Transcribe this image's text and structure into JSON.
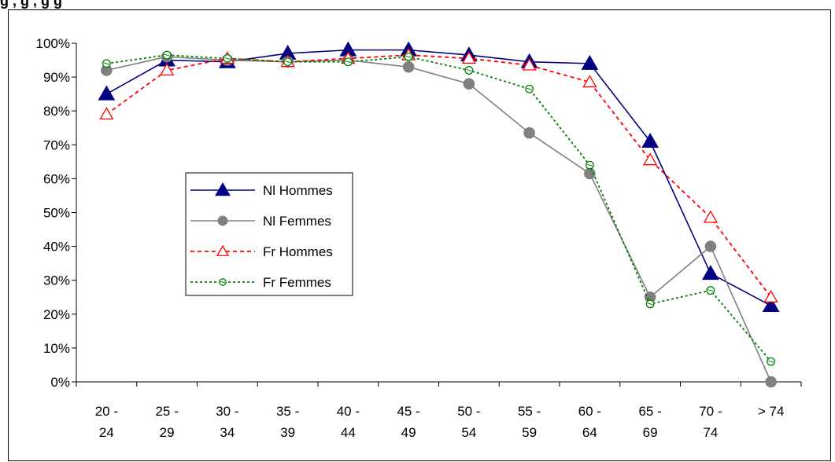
{
  "header": {
    "title_fragment": "g                                                           ,          g  ,   g      g"
  },
  "chart_data": {
    "type": "line",
    "categories": [
      [
        "20 -",
        "24"
      ],
      [
        "25 -",
        "29"
      ],
      [
        "30 -",
        "34"
      ],
      [
        "35 -",
        "39"
      ],
      [
        "40 -",
        "44"
      ],
      [
        "45 -",
        "49"
      ],
      [
        "50 -",
        "54"
      ],
      [
        "55 -",
        "59"
      ],
      [
        "60 -",
        "64"
      ],
      [
        "65 -",
        "69"
      ],
      [
        "70 -",
        "74"
      ],
      [
        "> 74",
        ""
      ]
    ],
    "ylim": [
      0,
      100
    ],
    "yticks": [
      "0%",
      "10%",
      "20%",
      "30%",
      "40%",
      "50%",
      "60%",
      "70%",
      "80%",
      "90%",
      "100%"
    ],
    "grid": false,
    "legend_position": "left-center",
    "series": [
      {
        "name": "Nl Hommes",
        "color": "#000080",
        "style": "solid",
        "marker": "filled-triangle",
        "values": [
          85,
          95,
          94.5,
          97,
          98,
          98,
          96.5,
          94.5,
          94,
          71,
          32,
          22.5
        ]
      },
      {
        "name": "Nl Femmes",
        "color": "#808080",
        "style": "solid",
        "marker": "filled-circle",
        "values": [
          92,
          96,
          95,
          94.5,
          95,
          93,
          88,
          73.5,
          61.5,
          25,
          40,
          0
        ]
      },
      {
        "name": "Fr Hommes",
        "color": "#ff0000",
        "style": "dashed",
        "marker": "open-triangle",
        "values": [
          79,
          92,
          95.5,
          94.5,
          95.5,
          96.5,
          95.5,
          93.5,
          88.5,
          65.5,
          48.5,
          25
        ]
      },
      {
        "name": "Fr Femmes",
        "color": "#008000",
        "style": "dotted",
        "marker": "open-circle",
        "values": [
          94,
          96.5,
          95.5,
          94.5,
          94.5,
          96,
          92,
          86.5,
          64,
          23,
          27,
          6
        ]
      }
    ]
  }
}
